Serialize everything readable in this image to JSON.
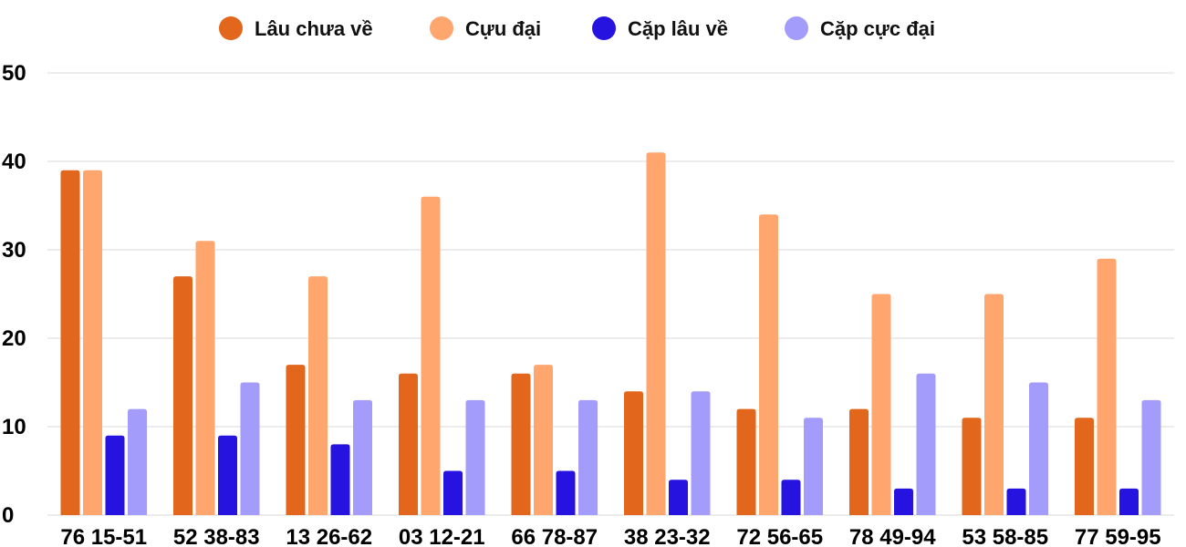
{
  "chart_data": {
    "type": "bar",
    "categories": [
      "76 15-51",
      "52 38-83",
      "13 26-62",
      "03 12-21",
      "66 78-87",
      "38 23-32",
      "72 56-65",
      "78 49-94",
      "53 58-85",
      "77 59-95"
    ],
    "series": [
      {
        "name": "Lâu chưa về",
        "color": "#E2661B",
        "values": [
          39,
          27,
          17,
          16,
          16,
          14,
          12,
          12,
          11,
          11
        ]
      },
      {
        "name": "Cựu đại",
        "color": "#FFA56E",
        "values": [
          39,
          31,
          27,
          36,
          17,
          41,
          34,
          25,
          25,
          29
        ]
      },
      {
        "name": "Cặp lâu về",
        "color": "#2713E0",
        "values": [
          9,
          9,
          8,
          5,
          5,
          4,
          4,
          3,
          3,
          3
        ]
      },
      {
        "name": "Cặp cực đại",
        "color": "#A39CFA",
        "values": [
          12,
          15,
          13,
          13,
          13,
          14,
          11,
          16,
          15,
          13
        ]
      }
    ],
    "yticks": [
      0,
      10,
      20,
      30,
      40,
      50
    ],
    "ylim": [
      0,
      50
    ],
    "grid": true,
    "legend_position": "top-center"
  }
}
